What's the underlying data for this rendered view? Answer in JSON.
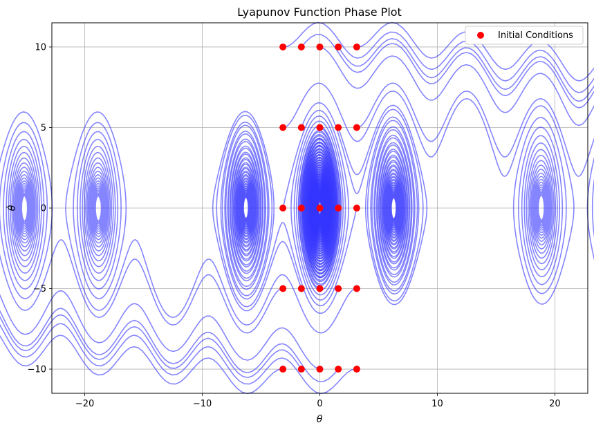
{
  "chart_data": {
    "type": "scatter",
    "title": "Lyapunov Function Phase Plot",
    "xlabel": "θ",
    "ylabel": "θ̇",
    "xlim": [
      -22.8,
      22.8
    ],
    "ylim": [
      -11.5,
      11.5
    ],
    "x_ticks": [
      -20,
      -10,
      0,
      10,
      20
    ],
    "y_ticks": [
      -10,
      -5,
      0,
      5,
      10
    ],
    "x_tick_labels": [
      "−20",
      "−10",
      "0",
      "10",
      "20"
    ],
    "y_tick_labels": [
      "−10",
      "−5",
      "0",
      "5",
      "10"
    ],
    "grid": true,
    "legend_position": "top-right",
    "trajectory_color": "#3333ff",
    "marker_color": "#ff0000",
    "series": [
      {
        "name": "Initial Conditions",
        "x": [
          -3.14,
          -1.57,
          0,
          1.57,
          3.14,
          -3.14,
          -1.57,
          0,
          1.57,
          3.14,
          -3.14,
          -1.57,
          0,
          1.57,
          3.14,
          -3.14,
          -1.57,
          0,
          1.57,
          3.14,
          -3.14,
          -1.57,
          0,
          1.57,
          3.14
        ],
        "y": [
          10,
          10,
          10,
          10,
          10,
          5,
          5,
          5,
          5,
          5,
          0,
          0,
          0,
          0,
          0,
          -5,
          -5,
          -5,
          -5,
          -5,
          -10,
          -10,
          -10,
          -10,
          -10
        ]
      }
    ],
    "legend": [
      "Initial Conditions"
    ]
  }
}
